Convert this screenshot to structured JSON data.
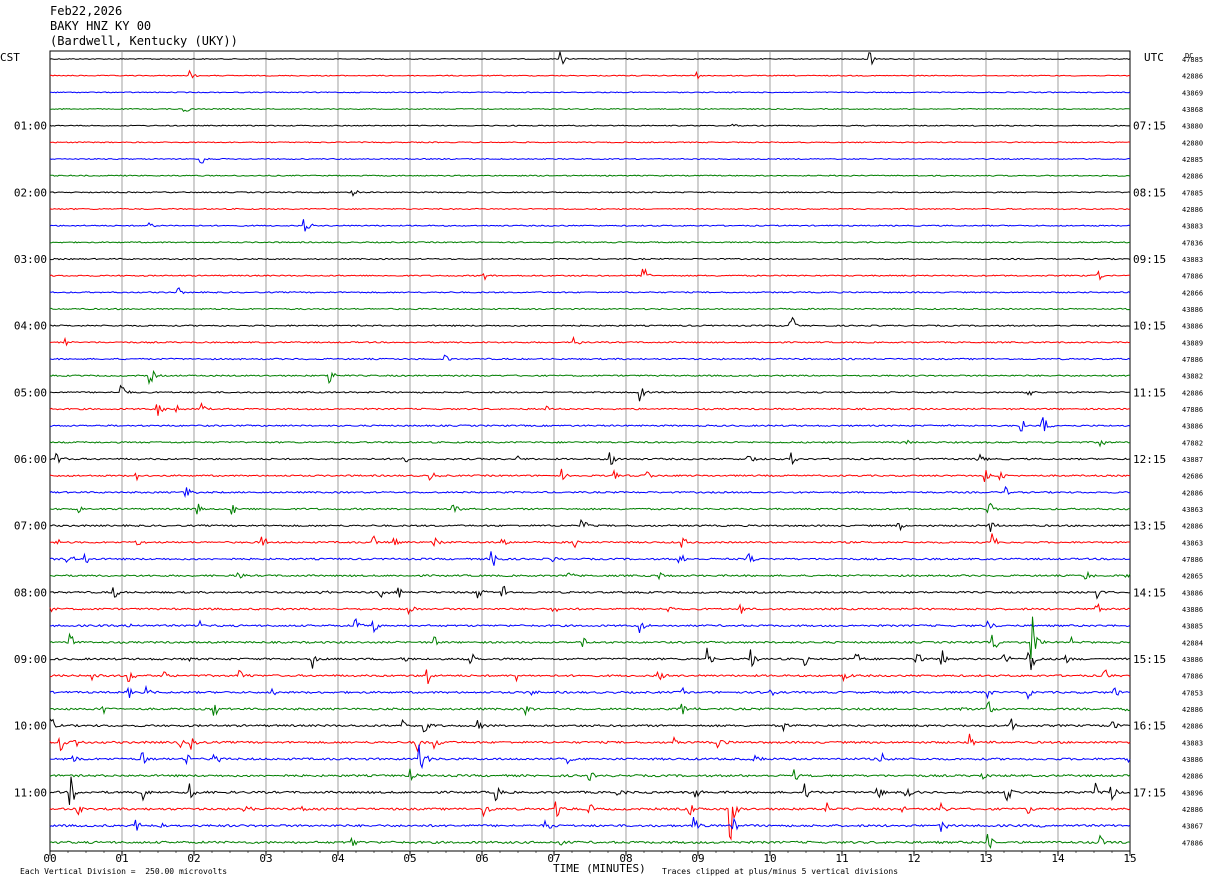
{
  "header": {
    "date": "Feb22,2026",
    "station": "BAKY HNZ KY 00",
    "location": "(Bardwell, Kentucky (UKY))"
  },
  "chart_data": {
    "type": "line",
    "description_free": true,
    "left_timezone": "CST",
    "right_timezone": "UTC",
    "corner_label": "DC",
    "xlabel": "TIME (MINUTES)",
    "x_ticks": [
      "00",
      "01",
      "02",
      "03",
      "04",
      "05",
      "06",
      "07",
      "08",
      "09",
      "10",
      "11",
      "12",
      "13",
      "14",
      "15"
    ],
    "xlim": [
      0,
      15
    ],
    "rows_per_hour": 4,
    "num_rows": 48,
    "colors": [
      "#000000",
      "#ff0000",
      "#0000ff",
      "#007f00"
    ],
    "left_hour_labels": [
      {
        "row": 4,
        "text": "01:00"
      },
      {
        "row": 8,
        "text": "02:00"
      },
      {
        "row": 12,
        "text": "03:00"
      },
      {
        "row": 16,
        "text": "04:00"
      },
      {
        "row": 20,
        "text": "05:00"
      },
      {
        "row": 24,
        "text": "06:00"
      },
      {
        "row": 28,
        "text": "07:00"
      },
      {
        "row": 32,
        "text": "08:00"
      },
      {
        "row": 36,
        "text": "09:00"
      },
      {
        "row": 40,
        "text": "10:00"
      },
      {
        "row": 44,
        "text": "11:00"
      }
    ],
    "right_hour_labels": [
      {
        "row": 4,
        "text": "07:15"
      },
      {
        "row": 8,
        "text": "08:15"
      },
      {
        "row": 12,
        "text": "09:15"
      },
      {
        "row": 16,
        "text": "10:15"
      },
      {
        "row": 20,
        "text": "11:15"
      },
      {
        "row": 24,
        "text": "12:15"
      },
      {
        "row": 28,
        "text": "13:15"
      },
      {
        "row": 32,
        "text": "14:15"
      },
      {
        "row": 36,
        "text": "15:15"
      },
      {
        "row": 40,
        "text": "16:15"
      },
      {
        "row": 44,
        "text": "17:15"
      }
    ],
    "row_dc_values": [
      "47885",
      "42886",
      "43869",
      "43868",
      "43880",
      "42880",
      "42885",
      "42886",
      "47885",
      "42886",
      "43883",
      "47836",
      "43883",
      "47886",
      "42866",
      "43886",
      "43886",
      "43889",
      "47886",
      "43882",
      "42886",
      "47886",
      "43886",
      "47882",
      "43887",
      "42686",
      "42886",
      "43863",
      "42886",
      "43863",
      "47886",
      "42865",
      "43886",
      "43886",
      "43885",
      "42884",
      "43886",
      "47886",
      "47853",
      "42886",
      "42886",
      "43883",
      "43886",
      "42886",
      "43896",
      "42886",
      "43867",
      "47886"
    ],
    "events": [
      {
        "row": 0,
        "x": 7.1,
        "amp": 8
      },
      {
        "row": 0,
        "x": 11.4,
        "amp": 9
      },
      {
        "row": 1,
        "x": 1.95,
        "amp": 5
      },
      {
        "row": 1,
        "x": 9.0,
        "amp": 4
      },
      {
        "row": 3,
        "x": 1.88,
        "amp": 5
      },
      {
        "row": 4,
        "x": 9.5,
        "amp": 3
      },
      {
        "row": 6,
        "x": 2.1,
        "amp": 7
      },
      {
        "row": 8,
        "x": 4.2,
        "amp": 7
      },
      {
        "row": 10,
        "x": 3.55,
        "amp": 8
      },
      {
        "row": 10,
        "x": 1.4,
        "amp": 4
      },
      {
        "row": 13,
        "x": 6.05,
        "amp": 7
      },
      {
        "row": 13,
        "x": 8.25,
        "amp": 10
      },
      {
        "row": 13,
        "x": 14.55,
        "amp": 8
      },
      {
        "row": 14,
        "x": 1.8,
        "amp": 5
      },
      {
        "row": 16,
        "x": 10.3,
        "amp": 12
      },
      {
        "row": 17,
        "x": 0.2,
        "amp": 6
      },
      {
        "row": 17,
        "x": 7.3,
        "amp": 6
      },
      {
        "row": 18,
        "x": 5.5,
        "amp": 4
      },
      {
        "row": 19,
        "x": 1.4,
        "amp": 9
      },
      {
        "row": 19,
        "x": 3.9,
        "amp": 9
      },
      {
        "row": 20,
        "x": 1.0,
        "amp": 9
      },
      {
        "row": 20,
        "x": 8.2,
        "amp": 11
      },
      {
        "row": 20,
        "x": 13.6,
        "amp": 5
      },
      {
        "row": 21,
        "x": 1.5,
        "amp": 7
      },
      {
        "row": 21,
        "x": 1.75,
        "amp": 8
      },
      {
        "row": 21,
        "x": 2.1,
        "amp": 6
      },
      {
        "row": 21,
        "x": 6.9,
        "amp": 4
      },
      {
        "row": 22,
        "x": 13.5,
        "amp": 7
      },
      {
        "row": 22,
        "x": 13.8,
        "amp": 11
      },
      {
        "row": 23,
        "x": 11.9,
        "amp": 4
      },
      {
        "row": 23,
        "x": 14.6,
        "amp": 5
      },
      {
        "row": 24,
        "x": 0.1,
        "amp": 7
      },
      {
        "row": 24,
        "x": 4.9,
        "amp": 7
      },
      {
        "row": 24,
        "x": 6.5,
        "amp": 5
      },
      {
        "row": 24,
        "x": 7.8,
        "amp": 10
      },
      {
        "row": 24,
        "x": 9.7,
        "amp": 7
      },
      {
        "row": 24,
        "x": 10.3,
        "amp": 7
      },
      {
        "row": 24,
        "x": 12.9,
        "amp": 8
      },
      {
        "row": 25,
        "x": 1.2,
        "amp": 5
      },
      {
        "row": 25,
        "x": 5.3,
        "amp": 5
      },
      {
        "row": 25,
        "x": 7.1,
        "amp": 7
      },
      {
        "row": 25,
        "x": 7.85,
        "amp": 5
      },
      {
        "row": 25,
        "x": 8.3,
        "amp": 6
      },
      {
        "row": 25,
        "x": 13.0,
        "amp": 8
      },
      {
        "row": 25,
        "x": 13.2,
        "amp": 7
      },
      {
        "row": 26,
        "x": 1.9,
        "amp": 8
      },
      {
        "row": 26,
        "x": 13.3,
        "amp": 5
      },
      {
        "row": 27,
        "x": 0.4,
        "amp": 4
      },
      {
        "row": 27,
        "x": 2.05,
        "amp": 7
      },
      {
        "row": 27,
        "x": 2.55,
        "amp": 6
      },
      {
        "row": 27,
        "x": 5.6,
        "amp": 14
      },
      {
        "row": 27,
        "x": 13.05,
        "amp": 7
      },
      {
        "row": 28,
        "x": 7.4,
        "amp": 10
      },
      {
        "row": 28,
        "x": 11.8,
        "amp": 6
      },
      {
        "row": 28,
        "x": 13.05,
        "amp": 9
      },
      {
        "row": 29,
        "x": 0.1,
        "amp": 6
      },
      {
        "row": 29,
        "x": 1.2,
        "amp": 8
      },
      {
        "row": 29,
        "x": 2.95,
        "amp": 9
      },
      {
        "row": 29,
        "x": 4.5,
        "amp": 9
      },
      {
        "row": 29,
        "x": 4.8,
        "amp": 7
      },
      {
        "row": 29,
        "x": 5.35,
        "amp": 6
      },
      {
        "row": 29,
        "x": 6.3,
        "amp": 5
      },
      {
        "row": 29,
        "x": 7.3,
        "amp": 6
      },
      {
        "row": 29,
        "x": 8.8,
        "amp": 8
      },
      {
        "row": 29,
        "x": 13.1,
        "amp": 12
      },
      {
        "row": 30,
        "x": 0.25,
        "amp": 10
      },
      {
        "row": 30,
        "x": 0.5,
        "amp": 7
      },
      {
        "row": 30,
        "x": 6.15,
        "amp": 10
      },
      {
        "row": 30,
        "x": 7.0,
        "amp": 6
      },
      {
        "row": 30,
        "x": 8.75,
        "amp": 8
      },
      {
        "row": 30,
        "x": 9.7,
        "amp": 8
      },
      {
        "row": 31,
        "x": 2.6,
        "amp": 7
      },
      {
        "row": 31,
        "x": 7.2,
        "amp": 5
      },
      {
        "row": 31,
        "x": 8.45,
        "amp": 6
      },
      {
        "row": 31,
        "x": 14.4,
        "amp": 5
      },
      {
        "row": 31,
        "x": 14.95,
        "amp": 6
      },
      {
        "row": 32,
        "x": 0.9,
        "amp": 7
      },
      {
        "row": 32,
        "x": 3.75,
        "amp": 5
      },
      {
        "row": 32,
        "x": 4.6,
        "amp": 9
      },
      {
        "row": 32,
        "x": 4.85,
        "amp": 8
      },
      {
        "row": 32,
        "x": 5.95,
        "amp": 7
      },
      {
        "row": 32,
        "x": 6.3,
        "amp": 10
      },
      {
        "row": 32,
        "x": 14.55,
        "amp": 7
      },
      {
        "row": 33,
        "x": 0.0,
        "amp": 5
      },
      {
        "row": 33,
        "x": 5.0,
        "amp": 6
      },
      {
        "row": 33,
        "x": 7.0,
        "amp": 7
      },
      {
        "row": 33,
        "x": 8.6,
        "amp": 5
      },
      {
        "row": 33,
        "x": 9.6,
        "amp": 5
      },
      {
        "row": 33,
        "x": 14.55,
        "amp": 6
      },
      {
        "row": 34,
        "x": 1.1,
        "amp": 5
      },
      {
        "row": 34,
        "x": 2.1,
        "amp": 7
      },
      {
        "row": 34,
        "x": 4.25,
        "amp": 12
      },
      {
        "row": 34,
        "x": 4.5,
        "amp": 8
      },
      {
        "row": 34,
        "x": 8.2,
        "amp": 9
      },
      {
        "row": 34,
        "x": 13.05,
        "amp": 5
      },
      {
        "row": 35,
        "x": 0.3,
        "amp": 9
      },
      {
        "row": 35,
        "x": 5.35,
        "amp": 6
      },
      {
        "row": 35,
        "x": 7.4,
        "amp": 7
      },
      {
        "row": 35,
        "x": 13.1,
        "amp": 12
      },
      {
        "row": 35,
        "x": 13.65,
        "amp": 26
      },
      {
        "row": 35,
        "x": 14.2,
        "amp": 6
      },
      {
        "row": 36,
        "x": 1.95,
        "amp": 6
      },
      {
        "row": 36,
        "x": 3.65,
        "amp": 9
      },
      {
        "row": 36,
        "x": 4.9,
        "amp": 5
      },
      {
        "row": 36,
        "x": 5.85,
        "amp": 8
      },
      {
        "row": 36,
        "x": 9.15,
        "amp": 11
      },
      {
        "row": 36,
        "x": 9.75,
        "amp": 10
      },
      {
        "row": 36,
        "x": 10.5,
        "amp": 7
      },
      {
        "row": 36,
        "x": 11.2,
        "amp": 8
      },
      {
        "row": 36,
        "x": 12.05,
        "amp": 10
      },
      {
        "row": 36,
        "x": 12.4,
        "amp": 8
      },
      {
        "row": 36,
        "x": 13.25,
        "amp": 9
      },
      {
        "row": 36,
        "x": 13.6,
        "amp": 30
      },
      {
        "row": 36,
        "x": 14.1,
        "amp": 9
      },
      {
        "row": 37,
        "x": 0.6,
        "amp": 5
      },
      {
        "row": 37,
        "x": 1.1,
        "amp": 8
      },
      {
        "row": 37,
        "x": 1.6,
        "amp": 6
      },
      {
        "row": 37,
        "x": 2.65,
        "amp": 8
      },
      {
        "row": 37,
        "x": 5.25,
        "amp": 9
      },
      {
        "row": 37,
        "x": 6.5,
        "amp": 6
      },
      {
        "row": 37,
        "x": 8.45,
        "amp": 6
      },
      {
        "row": 37,
        "x": 11.05,
        "amp": 7
      },
      {
        "row": 37,
        "x": 14.65,
        "amp": 8
      },
      {
        "row": 38,
        "x": 1.1,
        "amp": 8
      },
      {
        "row": 38,
        "x": 1.35,
        "amp": 6
      },
      {
        "row": 38,
        "x": 3.1,
        "amp": 7
      },
      {
        "row": 38,
        "x": 6.7,
        "amp": 5
      },
      {
        "row": 38,
        "x": 8.8,
        "amp": 5
      },
      {
        "row": 38,
        "x": 10.0,
        "amp": 8
      },
      {
        "row": 38,
        "x": 13.05,
        "amp": 6
      },
      {
        "row": 38,
        "x": 13.6,
        "amp": 7
      },
      {
        "row": 38,
        "x": 14.8,
        "amp": 6
      },
      {
        "row": 39,
        "x": 0.75,
        "amp": 6
      },
      {
        "row": 39,
        "x": 2.3,
        "amp": 6
      },
      {
        "row": 39,
        "x": 6.6,
        "amp": 9
      },
      {
        "row": 39,
        "x": 8.8,
        "amp": 7
      },
      {
        "row": 39,
        "x": 12.65,
        "amp": 8
      },
      {
        "row": 39,
        "x": 13.05,
        "amp": 8
      },
      {
        "row": 39,
        "x": 14.95,
        "amp": 8
      },
      {
        "row": 40,
        "x": 0.0,
        "amp": 14
      },
      {
        "row": 40,
        "x": 4.9,
        "amp": 8
      },
      {
        "row": 40,
        "x": 5.2,
        "amp": 12
      },
      {
        "row": 40,
        "x": 5.95,
        "amp": 6
      },
      {
        "row": 40,
        "x": 10.2,
        "amp": 6
      },
      {
        "row": 40,
        "x": 13.35,
        "amp": 8
      },
      {
        "row": 40,
        "x": 14.75,
        "amp": 10
      },
      {
        "row": 41,
        "x": 0.15,
        "amp": 10
      },
      {
        "row": 41,
        "x": 0.35,
        "amp": 7
      },
      {
        "row": 41,
        "x": 1.8,
        "amp": 8
      },
      {
        "row": 41,
        "x": 1.95,
        "amp": 9
      },
      {
        "row": 41,
        "x": 5.1,
        "amp": 11
      },
      {
        "row": 41,
        "x": 5.35,
        "amp": 8
      },
      {
        "row": 41,
        "x": 8.65,
        "amp": 6
      },
      {
        "row": 41,
        "x": 9.3,
        "amp": 6
      },
      {
        "row": 41,
        "x": 12.8,
        "amp": 8
      },
      {
        "row": 42,
        "x": 0.3,
        "amp": 7
      },
      {
        "row": 42,
        "x": 1.3,
        "amp": 7
      },
      {
        "row": 42,
        "x": 1.9,
        "amp": 10
      },
      {
        "row": 42,
        "x": 2.3,
        "amp": 7
      },
      {
        "row": 42,
        "x": 5.15,
        "amp": 22
      },
      {
        "row": 42,
        "x": 7.2,
        "amp": 8
      },
      {
        "row": 42,
        "x": 9.8,
        "amp": 6
      },
      {
        "row": 42,
        "x": 11.55,
        "amp": 6
      },
      {
        "row": 42,
        "x": 15.0,
        "amp": 6
      },
      {
        "row": 43,
        "x": 5.0,
        "amp": 7
      },
      {
        "row": 43,
        "x": 7.5,
        "amp": 5
      },
      {
        "row": 43,
        "x": 10.35,
        "amp": 8
      },
      {
        "row": 43,
        "x": 12.95,
        "amp": 5
      },
      {
        "row": 44,
        "x": 0.3,
        "amp": 16
      },
      {
        "row": 44,
        "x": 1.3,
        "amp": 8
      },
      {
        "row": 44,
        "x": 1.95,
        "amp": 9
      },
      {
        "row": 44,
        "x": 6.2,
        "amp": 10
      },
      {
        "row": 44,
        "x": 7.9,
        "amp": 9
      },
      {
        "row": 44,
        "x": 8.95,
        "amp": 10
      },
      {
        "row": 44,
        "x": 10.5,
        "amp": 9
      },
      {
        "row": 44,
        "x": 11.5,
        "amp": 10
      },
      {
        "row": 44,
        "x": 11.9,
        "amp": 10
      },
      {
        "row": 44,
        "x": 13.3,
        "amp": 9
      },
      {
        "row": 44,
        "x": 14.55,
        "amp": 10
      },
      {
        "row": 44,
        "x": 14.75,
        "amp": 9
      },
      {
        "row": 45,
        "x": 0.4,
        "amp": 8
      },
      {
        "row": 45,
        "x": 2.7,
        "amp": 7
      },
      {
        "row": 45,
        "x": 3.5,
        "amp": 7
      },
      {
        "row": 45,
        "x": 6.05,
        "amp": 8
      },
      {
        "row": 45,
        "x": 7.05,
        "amp": 9
      },
      {
        "row": 45,
        "x": 7.5,
        "amp": 6
      },
      {
        "row": 45,
        "x": 8.9,
        "amp": 8
      },
      {
        "row": 45,
        "x": 9.45,
        "amp": 40
      },
      {
        "row": 45,
        "x": 10.8,
        "amp": 8
      },
      {
        "row": 45,
        "x": 11.85,
        "amp": 7
      },
      {
        "row": 45,
        "x": 12.4,
        "amp": 8
      },
      {
        "row": 45,
        "x": 13.6,
        "amp": 9
      },
      {
        "row": 46,
        "x": 1.2,
        "amp": 8
      },
      {
        "row": 46,
        "x": 1.55,
        "amp": 6
      },
      {
        "row": 46,
        "x": 6.9,
        "amp": 7
      },
      {
        "row": 46,
        "x": 8.95,
        "amp": 10
      },
      {
        "row": 46,
        "x": 9.5,
        "amp": 9
      },
      {
        "row": 46,
        "x": 12.4,
        "amp": 7
      },
      {
        "row": 46,
        "x": 13.75,
        "amp": 6
      },
      {
        "row": 47,
        "x": 4.2,
        "amp": 6
      },
      {
        "row": 47,
        "x": 7.1,
        "amp": 8
      },
      {
        "row": 47,
        "x": 13.05,
        "amp": 10
      },
      {
        "row": 47,
        "x": 14.6,
        "amp": 7
      }
    ],
    "footer": {
      "vertical_division": "Each Vertical Division =  250.00 microvolts",
      "clip_note": "Traces clipped at plus/minus 5 vertical divisions"
    }
  }
}
